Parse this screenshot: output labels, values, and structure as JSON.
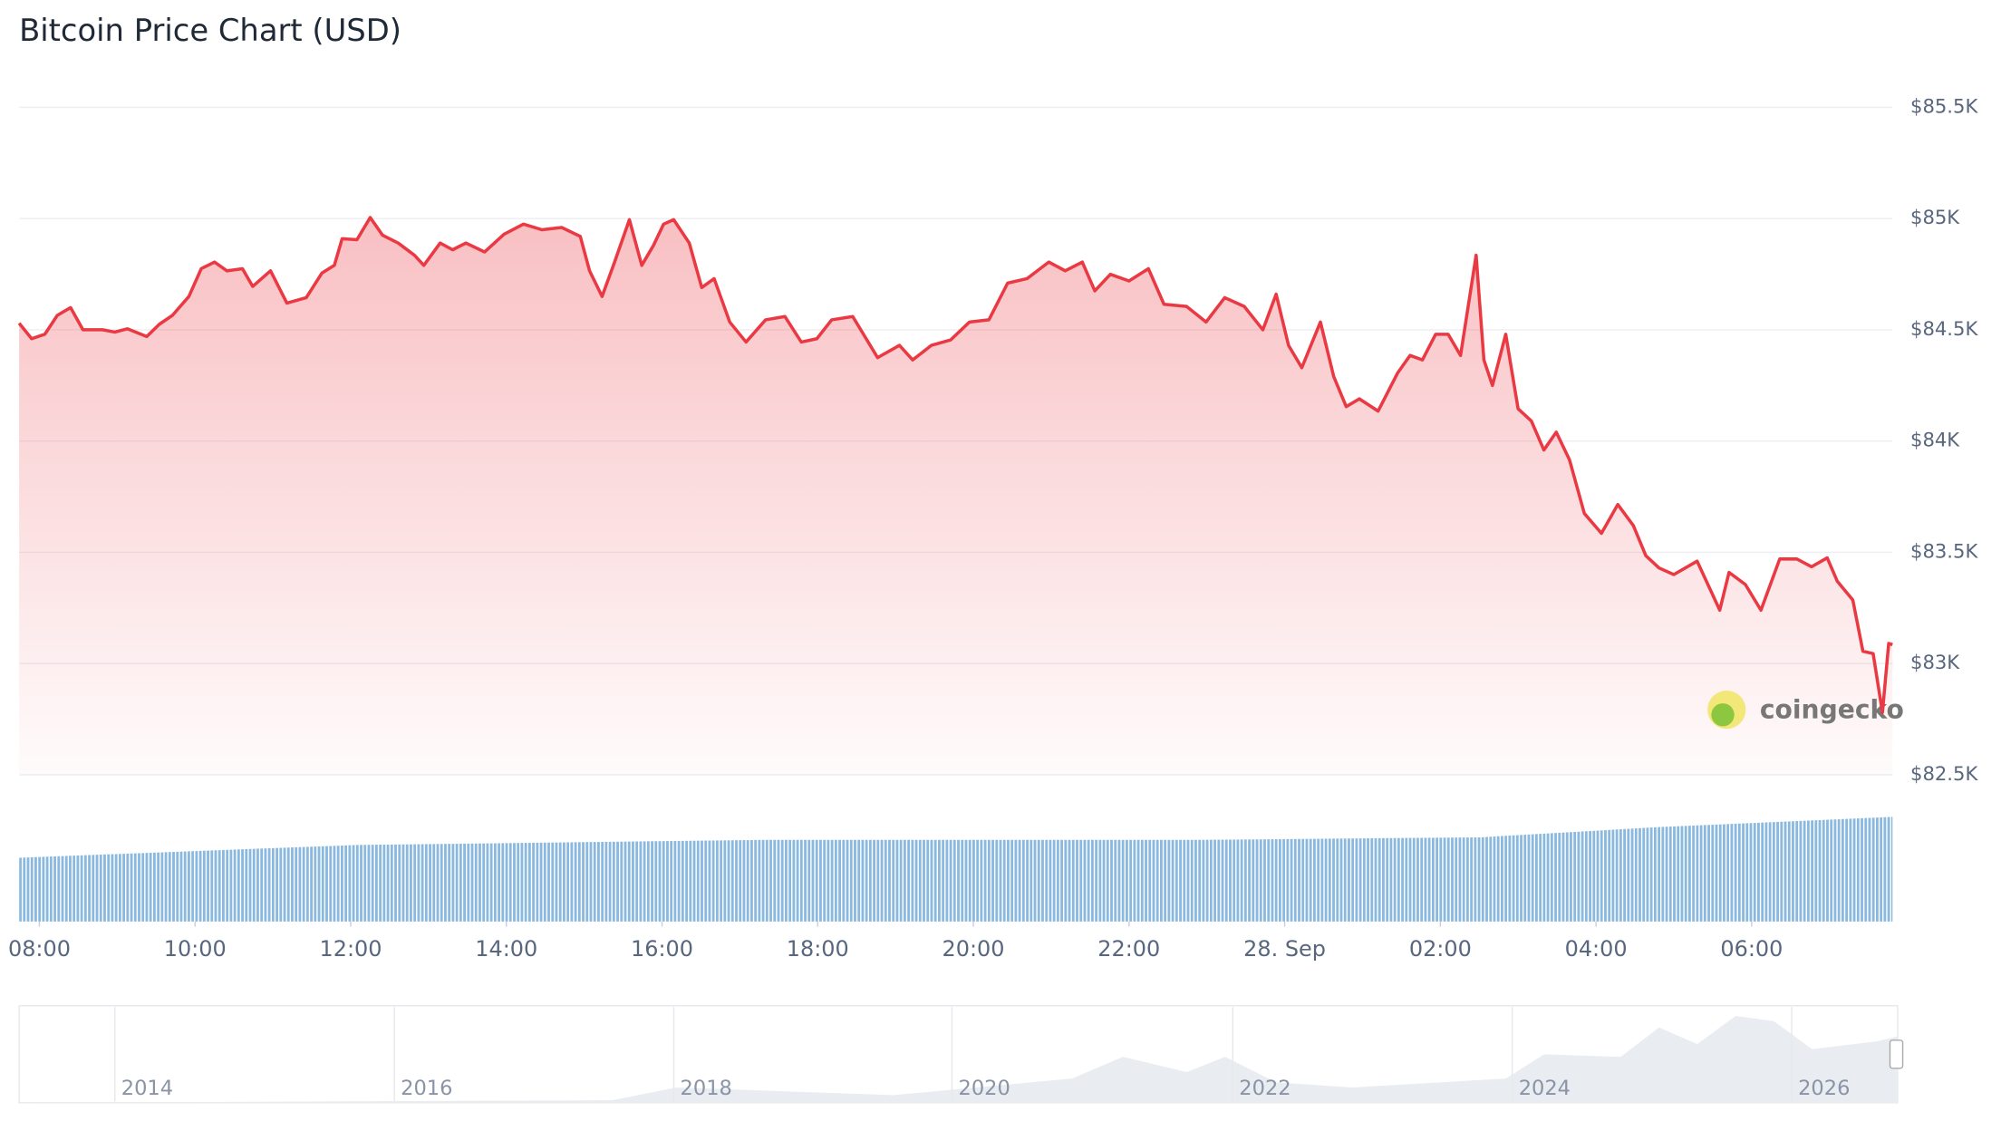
{
  "chart_data": {
    "type": "line",
    "title": "Bitcoin Price Chart (USD)",
    "watermark": "coingecko",
    "color": "#ea3943",
    "grid": true,
    "xlim": [
      7.74,
      31.81
    ],
    "xticks": [
      {
        "value": 8,
        "label": "08:00"
      },
      {
        "value": 10,
        "label": "10:00"
      },
      {
        "value": 12,
        "label": "12:00"
      },
      {
        "value": 14,
        "label": "14:00"
      },
      {
        "value": 16,
        "label": "16:00"
      },
      {
        "value": 18,
        "label": "18:00"
      },
      {
        "value": 20,
        "label": "20:00"
      },
      {
        "value": 22,
        "label": "22:00"
      },
      {
        "value": 24,
        "label": "28. Sep"
      },
      {
        "value": 26,
        "label": "02:00"
      },
      {
        "value": 28,
        "label": "04:00"
      },
      {
        "value": 30,
        "label": "06:00"
      }
    ],
    "ylim": [
      82500,
      85500
    ],
    "yticks": [
      {
        "value": 82500,
        "label": "$82.5K"
      },
      {
        "value": 83000,
        "label": "$83K"
      },
      {
        "value": 83500,
        "label": "$83.5K"
      },
      {
        "value": 84000,
        "label": "$84K"
      },
      {
        "value": 84500,
        "label": "$84.5K"
      },
      {
        "value": 85000,
        "label": "$85K"
      },
      {
        "value": 85500,
        "label": "$85.5K"
      }
    ],
    "x": [
      7.74,
      7.9,
      8.07,
      8.23,
      8.4,
      8.56,
      8.81,
      8.97,
      9.13,
      9.38,
      9.54,
      9.71,
      9.92,
      10.08,
      10.25,
      10.41,
      10.61,
      10.74,
      10.97,
      11.18,
      11.43,
      11.63,
      11.79,
      11.89,
      12.08,
      12.25,
      12.41,
      12.61,
      12.82,
      12.94,
      13.15,
      13.31,
      13.48,
      13.72,
      13.97,
      14.22,
      14.46,
      14.71,
      14.95,
      15.07,
      15.23,
      15.39,
      15.58,
      15.74,
      15.89,
      16.02,
      16.15,
      16.35,
      16.51,
      16.67,
      16.87,
      17.08,
      17.33,
      17.58,
      17.79,
      17.99,
      18.18,
      18.45,
      18.77,
      19.05,
      19.22,
      19.46,
      19.71,
      19.95,
      20.2,
      20.44,
      20.69,
      20.97,
      21.18,
      21.4,
      21.56,
      21.76,
      22.0,
      22.25,
      22.45,
      22.74,
      22.99,
      23.23,
      23.48,
      23.72,
      23.89,
      24.05,
      24.22,
      24.46,
      24.63,
      24.79,
      24.96,
      25.2,
      25.45,
      25.61,
      25.77,
      25.94,
      26.1,
      26.26,
      26.46,
      26.56,
      26.67,
      26.84,
      27.0,
      27.17,
      27.33,
      27.49,
      27.66,
      27.85,
      28.07,
      28.28,
      28.48,
      28.64,
      28.81,
      29.0,
      29.3,
      29.59,
      29.71,
      29.92,
      30.12,
      30.36,
      30.58,
      30.77,
      30.97,
      31.1,
      31.3,
      31.43,
      31.56,
      31.68,
      31.76,
      31.81
    ],
    "values": [
      84530,
      84460,
      84480,
      84565,
      84600,
      84500,
      84500,
      84490,
      84505,
      84470,
      84525,
      84565,
      84650,
      84775,
      84805,
      84765,
      84775,
      84695,
      84765,
      84620,
      84645,
      84755,
      84790,
      84910,
      84905,
      85005,
      84925,
      84890,
      84835,
      84790,
      84890,
      84860,
      84890,
      84850,
      84930,
      84975,
      84950,
      84960,
      84920,
      84765,
      84650,
      84805,
      84995,
      84790,
      84880,
      84975,
      84995,
      84890,
      84690,
      84730,
      84535,
      84445,
      84545,
      84560,
      84445,
      84460,
      84545,
      84560,
      84375,
      84430,
      84365,
      84430,
      84455,
      84535,
      84545,
      84710,
      84730,
      84805,
      84765,
      84805,
      84675,
      84750,
      84720,
      84775,
      84615,
      84605,
      84535,
      84645,
      84605,
      84500,
      84660,
      84430,
      84330,
      84535,
      84290,
      84155,
      84190,
      84135,
      84305,
      84385,
      84365,
      84480,
      84480,
      84385,
      84835,
      84365,
      84250,
      84480,
      84145,
      84090,
      83960,
      84040,
      83915,
      83675,
      83585,
      83715,
      83620,
      83485,
      83430,
      83400,
      83460,
      83240,
      83410,
      83355,
      83240,
      83470,
      83470,
      83435,
      83475,
      83370,
      83285,
      83055,
      83045,
      82780,
      83090,
      83085
    ],
    "navigator_labels": [
      "2014",
      "2016",
      "2018",
      "2020",
      "2022",
      "2024",
      "2026"
    ]
  }
}
